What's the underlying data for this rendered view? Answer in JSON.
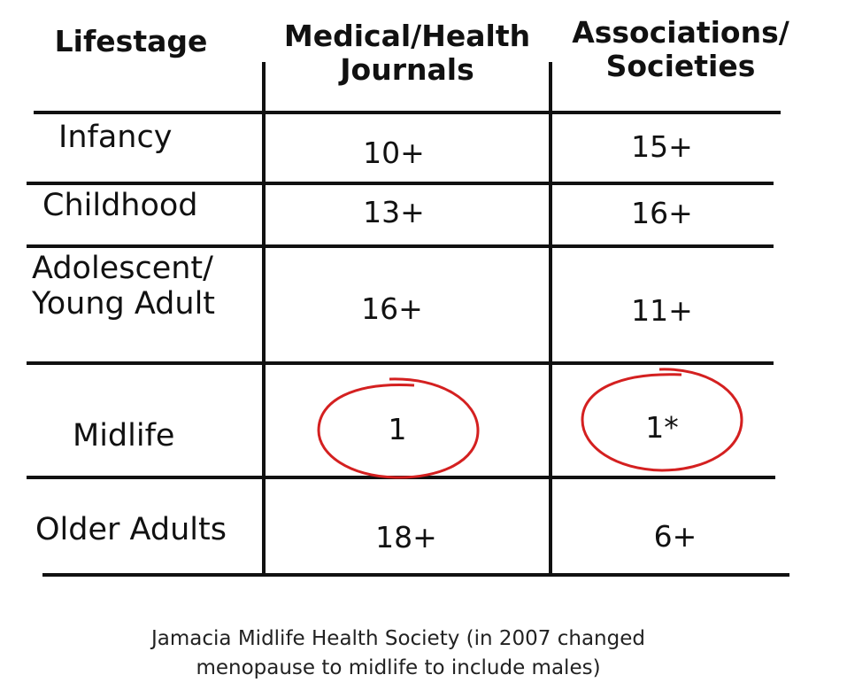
{
  "chart_data": {
    "type": "table",
    "columns": [
      "Lifestage",
      "Medical/Health Journals",
      "Associations/ Societies"
    ],
    "header_lines": {
      "c0": [
        "Lifestage"
      ],
      "c1": [
        "Medical/Health",
        "Journals"
      ],
      "c2": [
        "Associations/",
        "Societies"
      ]
    },
    "rows": [
      {
        "label": [
          "Infancy"
        ],
        "journals": "10+",
        "societies": "15+"
      },
      {
        "label": [
          "Childhood"
        ],
        "journals": "13+",
        "societies": "16+"
      },
      {
        "label": [
          "Adolescent/",
          "Young Adult"
        ],
        "journals": "16+",
        "societies": "11+"
      },
      {
        "label": [
          "Midlife"
        ],
        "journals": "1",
        "societies": "1*"
      },
      {
        "label": [
          "Older Adults"
        ],
        "journals": "18+",
        "societies": "6+"
      }
    ],
    "highlighted_row": "Midlife",
    "highlight_color": "#d42020",
    "footnote": [
      "Jamacia Midlife Health Society (in 2007 changed",
      "menopause to midlife to include males)"
    ]
  }
}
